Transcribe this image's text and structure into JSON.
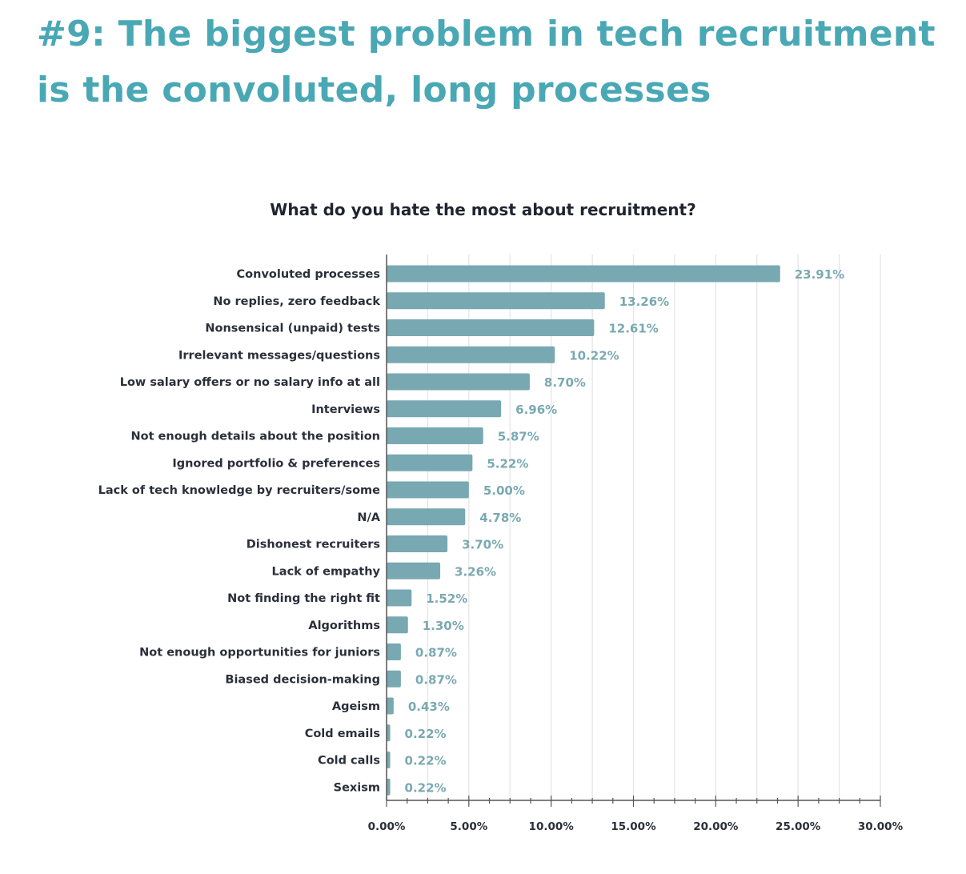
{
  "header": {
    "title": "#9: The biggest problem in tech recruitment is the convoluted, long processes"
  },
  "colors": {
    "headline": "#4aa8b5",
    "bar": "#78a8b2",
    "value_label": "#7aa9b2",
    "grid": "#e4e4e4",
    "axis": "#555555"
  },
  "chart_data": {
    "type": "bar",
    "orientation": "horizontal",
    "title": "What do you hate the most about recruitment?",
    "xlabel": "",
    "ylabel": "",
    "xlim": [
      0,
      30
    ],
    "x_ticks": [
      "0.00%",
      "5.00%",
      "10.00%",
      "15.00%",
      "20.00%",
      "25.00%",
      "30.00%"
    ],
    "grid": true,
    "categories": [
      "Convoluted processes",
      "No replies, zero feedback",
      "Nonsensical (unpaid) tests",
      "Irrelevant messages/questions",
      "Low salary offers or no salary info at all",
      "Interviews",
      "Not enough details about the position",
      "Ignored portfolio & preferences",
      "Lack of tech knowledge by recruiters/some",
      "N/A",
      "Dishonest recruiters",
      "Lack of empathy",
      "Not finding the right fit",
      "Algorithms",
      "Not enough opportunities for juniors",
      "Biased decision-making",
      "Ageism",
      "Cold emails",
      "Cold calls",
      "Sexism"
    ],
    "values": [
      23.91,
      13.26,
      12.61,
      10.22,
      8.7,
      6.96,
      5.87,
      5.22,
      5.0,
      4.78,
      3.7,
      3.26,
      1.52,
      1.3,
      0.87,
      0.87,
      0.43,
      0.22,
      0.22,
      0.22
    ],
    "value_labels": [
      "23.91%",
      "13.26%",
      "12.61%",
      "10.22%",
      "8.70%",
      "6.96%",
      "5.87%",
      "5.22%",
      "5.00%",
      "4.78%",
      "3.70%",
      "3.26%",
      "1.52%",
      "1.30%",
      "0.87%",
      "0.87%",
      "0.43%",
      "0.22%",
      "0.22%",
      "0.22%"
    ]
  }
}
